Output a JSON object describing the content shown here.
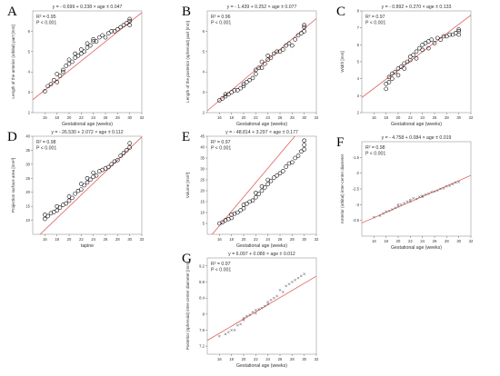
{
  "chart_data": [
    {
      "id": "A",
      "type": "scatter",
      "panel_label": "A",
      "title": "y = - 0.699 + 0.238 × age ± 0.047",
      "stats": [
        "R² = 0.95",
        "P < 0.001"
      ],
      "xlabel": "Gestational age (weeks)",
      "ylabel": "Length of the anterior (orbital) part [mm]",
      "xlim": [
        14,
        32
      ],
      "ylim": [
        2,
        7
      ],
      "xticks": [
        16,
        18,
        20,
        22,
        24,
        26,
        28,
        30,
        32
      ],
      "yticks": [
        2,
        3,
        4,
        5,
        6
      ],
      "fit": {
        "intercept": -0.699,
        "slope": 0.238
      },
      "marker": "circle",
      "points": [
        [
          16,
          3.05
        ],
        [
          16.5,
          3.3
        ],
        [
          17,
          3.4
        ],
        [
          17.5,
          3.6
        ],
        [
          18,
          3.5
        ],
        [
          18,
          3.9
        ],
        [
          18.5,
          3.8
        ],
        [
          19,
          4.0
        ],
        [
          19,
          4.1
        ],
        [
          19.5,
          4.3
        ],
        [
          20,
          4.4
        ],
        [
          20,
          4.6
        ],
        [
          20.5,
          4.5
        ],
        [
          21,
          4.7
        ],
        [
          21,
          4.9
        ],
        [
          21.5,
          4.8
        ],
        [
          22,
          4.9
        ],
        [
          22,
          5.1
        ],
        [
          22.5,
          5.0
        ],
        [
          23,
          5.2
        ],
        [
          23,
          5.4
        ],
        [
          23.5,
          5.3
        ],
        [
          24,
          5.5
        ],
        [
          24,
          5.6
        ],
        [
          24.5,
          5.5
        ],
        [
          25,
          5.7
        ],
        [
          25.5,
          5.8
        ],
        [
          26,
          5.7
        ],
        [
          26.5,
          5.9
        ],
        [
          27,
          6.0
        ],
        [
          27.5,
          6.0
        ],
        [
          28,
          6.1
        ],
        [
          28.5,
          6.2
        ],
        [
          29,
          6.3
        ],
        [
          29.5,
          6.4
        ],
        [
          30,
          6.3
        ],
        [
          30,
          6.5
        ],
        [
          30,
          6.6
        ]
      ]
    },
    {
      "id": "B",
      "type": "scatter",
      "panel_label": "B",
      "title": "y = - 1.439 + 0.252 × age ± 0.077",
      "stats": [
        "R² = 0.96",
        "P < 0.001"
      ],
      "xlabel": "Gestational age (weeks)",
      "ylabel": "Length of the posterior (sphenoid) part [mm]",
      "xlim": [
        14,
        32
      ],
      "ylim": [
        2,
        7
      ],
      "xticks": [
        16,
        18,
        20,
        22,
        24,
        26,
        28,
        30,
        32
      ],
      "yticks": [
        2,
        3,
        4,
        5,
        6
      ],
      "fit": {
        "intercept": -1.439,
        "slope": 0.252
      },
      "marker": "circle",
      "points": [
        [
          16,
          2.6
        ],
        [
          16.5,
          2.7
        ],
        [
          17,
          2.8
        ],
        [
          17,
          2.9
        ],
        [
          17.5,
          2.9
        ],
        [
          18,
          3.0
        ],
        [
          18.5,
          3.1
        ],
        [
          19,
          3.1
        ],
        [
          19.5,
          3.2
        ],
        [
          20,
          3.4
        ],
        [
          20,
          3.3
        ],
        [
          20.5,
          3.5
        ],
        [
          21,
          3.6
        ],
        [
          21.5,
          3.7
        ],
        [
          22,
          3.9
        ],
        [
          22,
          4.1
        ],
        [
          22.5,
          4.2
        ],
        [
          23,
          4.2
        ],
        [
          23,
          4.5
        ],
        [
          23.5,
          4.4
        ],
        [
          24,
          4.6
        ],
        [
          24,
          4.8
        ],
        [
          24.5,
          4.7
        ],
        [
          25,
          4.9
        ],
        [
          25.5,
          5.0
        ],
        [
          26,
          5.0
        ],
        [
          26.5,
          5.1
        ],
        [
          27,
          5.3
        ],
        [
          27.5,
          5.4
        ],
        [
          28,
          5.3
        ],
        [
          28.5,
          5.6
        ],
        [
          29,
          5.8
        ],
        [
          29.5,
          5.9
        ],
        [
          30,
          6.0
        ],
        [
          30,
          6.2
        ],
        [
          30,
          6.3
        ]
      ]
    },
    {
      "id": "C",
      "type": "scatter",
      "panel_label": "C",
      "title": "y = - 0.892 + 0.270 × age ± 0.133",
      "stats": [
        "R² = 0.97",
        "P < 0.001"
      ],
      "xlabel": "Gestational age (weeks)",
      "ylabel": "Width [mm]",
      "xlim": [
        14,
        32
      ],
      "ylim": [
        2,
        8
      ],
      "xticks": [
        16,
        18,
        20,
        22,
        24,
        26,
        28,
        30,
        32
      ],
      "yticks": [
        2,
        3,
        4,
        5,
        6,
        7,
        8
      ],
      "fit": {
        "intercept": -0.892,
        "slope": 0.27
      },
      "marker": "circle",
      "points": [
        [
          18,
          3.4
        ],
        [
          18,
          3.7
        ],
        [
          18.5,
          3.8
        ],
        [
          18.5,
          4.1
        ],
        [
          19,
          4.0
        ],
        [
          19,
          4.3
        ],
        [
          19.5,
          4.4
        ],
        [
          20,
          4.2
        ],
        [
          20,
          4.6
        ],
        [
          20.5,
          4.7
        ],
        [
          21,
          4.6
        ],
        [
          21,
          4.9
        ],
        [
          21.5,
          5.0
        ],
        [
          22,
          5.1
        ],
        [
          22,
          5.3
        ],
        [
          22.5,
          5.4
        ],
        [
          23,
          5.2
        ],
        [
          23,
          5.6
        ],
        [
          23.5,
          5.8
        ],
        [
          24,
          5.7
        ],
        [
          24,
          6.0
        ],
        [
          24.5,
          6.1
        ],
        [
          25,
          5.8
        ],
        [
          25,
          6.2
        ],
        [
          25.5,
          6.3
        ],
        [
          26,
          6.1
        ],
        [
          26.5,
          6.4
        ],
        [
          27,
          6.3
        ],
        [
          27.5,
          6.5
        ],
        [
          28,
          6.5
        ],
        [
          28.5,
          6.6
        ],
        [
          29,
          6.6
        ],
        [
          29.5,
          6.7
        ],
        [
          30,
          6.6
        ],
        [
          30,
          6.8
        ],
        [
          30,
          6.9
        ]
      ]
    },
    {
      "id": "D",
      "type": "scatter",
      "panel_label": "D",
      "title": "y = - 26.530 + 2.072 × age ± 0.112",
      "stats": [
        "R² = 0.98",
        "P < 0.001"
      ],
      "xlabel": "tapine",
      "ylabel": "Projection surface area [mm²]",
      "xlim": [
        14,
        32
      ],
      "ylim": [
        5,
        40
      ],
      "xticks": [
        16,
        18,
        20,
        22,
        24,
        26,
        28,
        30,
        32
      ],
      "yticks": [
        10,
        15,
        20,
        25,
        30,
        35,
        40
      ],
      "fit": {
        "intercept": -26.53,
        "slope": 2.072
      },
      "marker": "circle",
      "points": [
        [
          16,
          10.5
        ],
        [
          16,
          12
        ],
        [
          16.5,
          11.5
        ],
        [
          17,
          12.5
        ],
        [
          17.5,
          13
        ],
        [
          18,
          13.5
        ],
        [
          18,
          15
        ],
        [
          18.5,
          14.5
        ],
        [
          19,
          15.5
        ],
        [
          19.5,
          16
        ],
        [
          20,
          17
        ],
        [
          20,
          18.5
        ],
        [
          20.5,
          18
        ],
        [
          21,
          19.5
        ],
        [
          21.5,
          20.5
        ],
        [
          22,
          21
        ],
        [
          22,
          23
        ],
        [
          22.5,
          22.5
        ],
        [
          23,
          23.5
        ],
        [
          23,
          25
        ],
        [
          23.5,
          24.5
        ],
        [
          24,
          25.5
        ],
        [
          24,
          27
        ],
        [
          24.5,
          26
        ],
        [
          25,
          27.5
        ],
        [
          25.5,
          28
        ],
        [
          26,
          28.5
        ],
        [
          26.5,
          29
        ],
        [
          27,
          30
        ],
        [
          27.5,
          31
        ],
        [
          28,
          31.5
        ],
        [
          28.5,
          33
        ],
        [
          29,
          34
        ],
        [
          29.5,
          35
        ],
        [
          30,
          36
        ],
        [
          30,
          37.5
        ]
      ]
    },
    {
      "id": "E",
      "type": "scatter",
      "panel_label": "E",
      "title": "y = - 48.814 + 3.297 × age ± 0.177",
      "stats": [
        "R² = 0.97",
        "P < 0.001"
      ],
      "xlabel": "Gestational age (weeks)",
      "ylabel": "Volume [mm³]",
      "xlim": [
        14,
        32
      ],
      "ylim": [
        0,
        45
      ],
      "xticks": [
        16,
        18,
        20,
        22,
        24,
        26,
        28,
        30,
        32
      ],
      "yticks": [
        5,
        10,
        15,
        20,
        25,
        30,
        35,
        40,
        45
      ],
      "fit": {
        "intercept": -48.814,
        "slope": 3.297
      },
      "marker": "circle",
      "points": [
        [
          16,
          5
        ],
        [
          16.5,
          5.5
        ],
        [
          17,
          6.5
        ],
        [
          17.5,
          7
        ],
        [
          18,
          7.5
        ],
        [
          18,
          9
        ],
        [
          18.5,
          9.5
        ],
        [
          19,
          10
        ],
        [
          19.5,
          11
        ],
        [
          20,
          12
        ],
        [
          20,
          13.5
        ],
        [
          20.5,
          14
        ],
        [
          21,
          15
        ],
        [
          21.5,
          15.5
        ],
        [
          22,
          17
        ],
        [
          22,
          19
        ],
        [
          22.5,
          18.5
        ],
        [
          23,
          20
        ],
        [
          23,
          22
        ],
        [
          23.5,
          21.5
        ],
        [
          24,
          23
        ],
        [
          24,
          25
        ],
        [
          24.5,
          24.5
        ],
        [
          25,
          26
        ],
        [
          25.5,
          27
        ],
        [
          26,
          28
        ],
        [
          26.5,
          29
        ],
        [
          27,
          31
        ],
        [
          27.5,
          32.5
        ],
        [
          28,
          33
        ],
        [
          28.5,
          35
        ],
        [
          29,
          36
        ],
        [
          29.5,
          38
        ],
        [
          30,
          39
        ],
        [
          30,
          41
        ],
        [
          30,
          43
        ]
      ]
    },
    {
      "id": "F",
      "type": "scatter",
      "panel_label": "F",
      "title": "y = - 4.758 + 0.084 × age ± 0.019",
      "stats": [
        "R² = 0.98",
        "P < 0.001"
      ],
      "xlabel": "Gestational age (weeks)",
      "ylabel": "Anterior (orbital) inter-center diameter",
      "xlim": [
        14,
        32
      ],
      "ylim": [
        -4,
        -1
      ],
      "xticks": [
        16,
        18,
        20,
        22,
        24,
        26,
        28,
        30,
        32
      ],
      "yticks": [
        -3.5,
        -3,
        -2.5,
        -2,
        -1.5
      ],
      "fit": {
        "intercept": -4.758,
        "slope": 0.084
      },
      "marker": "cross",
      "points": [
        [
          16,
          -3.4
        ],
        [
          17,
          -3.35
        ],
        [
          17.5,
          -3.28
        ],
        [
          18,
          -3.22
        ],
        [
          18.5,
          -3.2
        ],
        [
          19,
          -3.15
        ],
        [
          19.5,
          -3.1
        ],
        [
          20,
          -3.05
        ],
        [
          20,
          -3.0
        ],
        [
          20.5,
          -3.0
        ],
        [
          21,
          -2.95
        ],
        [
          21.5,
          -2.9
        ],
        [
          22,
          -2.9
        ],
        [
          22,
          -2.85
        ],
        [
          22.5,
          -2.8
        ],
        [
          23,
          -2.82
        ],
        [
          23.5,
          -2.75
        ],
        [
          24,
          -2.75
        ],
        [
          24,
          -2.72
        ],
        [
          24.5,
          -2.68
        ],
        [
          25,
          -2.65
        ],
        [
          25.5,
          -2.6
        ],
        [
          26,
          -2.58
        ],
        [
          26.5,
          -2.55
        ],
        [
          27,
          -2.5
        ],
        [
          27.5,
          -2.48
        ],
        [
          28,
          -2.42
        ],
        [
          28.5,
          -2.4
        ],
        [
          29,
          -2.35
        ],
        [
          29.5,
          -2.3
        ],
        [
          30,
          -2.28
        ]
      ]
    },
    {
      "id": "G",
      "type": "scatter",
      "panel_label": "G",
      "title": "y = 6.097 + 0.089 × age ± 0.012",
      "stats": [
        "R² = 0.97",
        "P < 0.001"
      ],
      "xlabel": "Gestational age (weeks)",
      "ylabel": "Posterior (sphenoid) inter-center diameter [mm]",
      "xlim": [
        14,
        32
      ],
      "ylim": [
        7,
        9.4
      ],
      "xticks": [
        16,
        18,
        20,
        22,
        24,
        26,
        28,
        30,
        32
      ],
      "yticks": [
        7.2,
        7.6,
        8.0,
        8.4,
        8.8,
        9.2
      ],
      "fit": {
        "intercept": 6.097,
        "slope": 0.089
      },
      "marker": "cross",
      "points": [
        [
          16,
          7.45
        ],
        [
          17,
          7.5
        ],
        [
          17.5,
          7.55
        ],
        [
          18,
          7.6
        ],
        [
          18.5,
          7.6
        ],
        [
          19,
          7.72
        ],
        [
          19.5,
          7.75
        ],
        [
          20,
          7.9
        ],
        [
          20,
          7.85
        ],
        [
          20.5,
          7.95
        ],
        [
          21,
          7.98
        ],
        [
          21.5,
          8.05
        ],
        [
          22,
          8.1
        ],
        [
          22,
          8.02
        ],
        [
          22.5,
          8.12
        ],
        [
          23,
          8.15
        ],
        [
          23.5,
          8.2
        ],
        [
          24,
          8.3
        ],
        [
          24,
          8.25
        ],
        [
          24.5,
          8.35
        ],
        [
          25,
          8.4
        ],
        [
          25.5,
          8.45
        ],
        [
          26,
          8.6
        ],
        [
          26.5,
          8.55
        ],
        [
          27,
          8.7
        ],
        [
          27.5,
          8.75
        ],
        [
          28,
          8.8
        ],
        [
          28.5,
          8.85
        ],
        [
          29,
          8.9
        ],
        [
          29.5,
          8.95
        ],
        [
          30,
          9.0
        ]
      ]
    }
  ]
}
